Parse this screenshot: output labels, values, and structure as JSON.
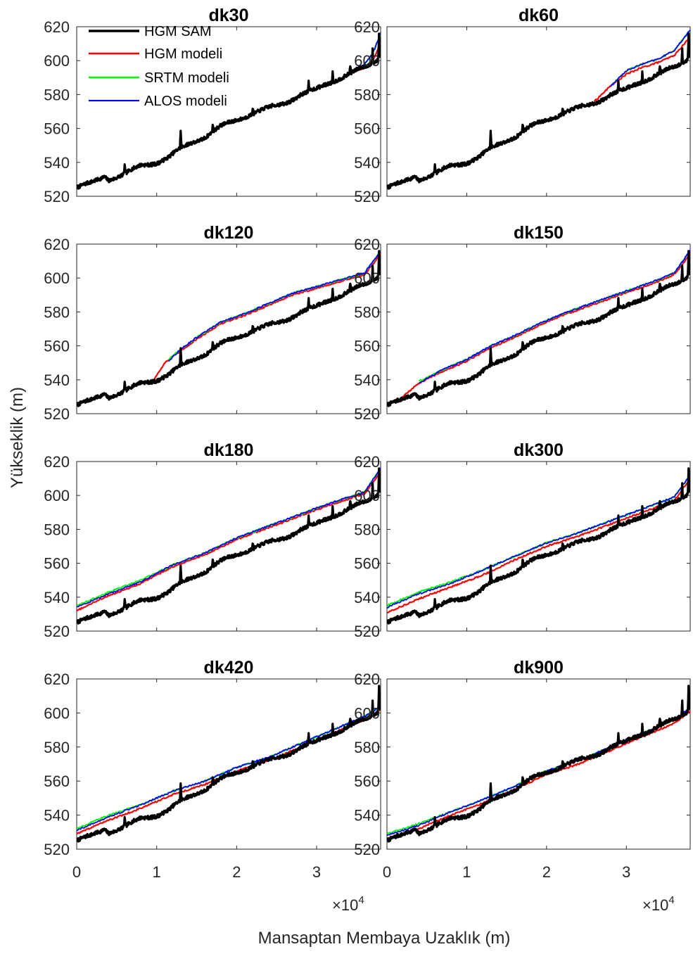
{
  "chart_data": {
    "type": "line",
    "layout": "4x2 grid of subplots",
    "ylabel": "Yükseklik (m)",
    "xlabel": "Mansaptan Membaya Uzaklık (m)",
    "x_exponent": "×10",
    "x_exponent_power": "4",
    "xlim": [
      0,
      38000
    ],
    "ylim": [
      520,
      620
    ],
    "xticks": [
      0,
      10000,
      20000,
      30000
    ],
    "xtick_labels": [
      "0",
      "1",
      "2",
      "3"
    ],
    "yticks": [
      520,
      540,
      560,
      580,
      600,
      620
    ],
    "ytick_labels": [
      "520",
      "540",
      "560",
      "580",
      "600",
      "620"
    ],
    "legend_location": "top-left of first subplot",
    "series_styles": [
      {
        "name": "HGM SAM",
        "color": "#000000",
        "width": 3.2
      },
      {
        "name": "HGM modeli",
        "color": "#ff0000",
        "width": 2.2
      },
      {
        "name": "SRTM modeli",
        "color": "#00ff00",
        "width": 2.0
      },
      {
        "name": "ALOS modeli",
        "color": "#0000ff",
        "width": 1.8
      }
    ],
    "reference_profile": {
      "name": "HGM SAM",
      "x": [
        0,
        2000,
        3500,
        4000,
        6000,
        8000,
        10000,
        11500,
        13000,
        14500,
        16000,
        18000,
        20000,
        22000,
        24000,
        26000,
        28000,
        30000,
        32000,
        34000,
        35500,
        36500,
        37500,
        38000
      ],
      "y": [
        525,
        528,
        532,
        530,
        533,
        538,
        540,
        543,
        548,
        552,
        555,
        561,
        565,
        569,
        572,
        575,
        580,
        583,
        588,
        592,
        595,
        597,
        600,
        605
      ]
    },
    "subplots": [
      {
        "title": "dk30",
        "series": [
          {
            "name": "HGM modeli",
            "x": [
              34000,
              36000,
              37000,
              38000
            ],
            "y": [
              592,
              596,
              600,
              610
            ]
          },
          {
            "name": "SRTM modeli",
            "x": [
              34500,
              36000,
              37000,
              38000
            ],
            "y": [
              594,
              598,
              604,
              616
            ]
          },
          {
            "name": "ALOS modeli",
            "x": [
              34500,
              36000,
              37000,
              38000
            ],
            "y": [
              594,
              598,
              604,
              616
            ]
          }
        ]
      },
      {
        "title": "dk60",
        "series": [
          {
            "name": "HGM modeli",
            "x": [
              26000,
              28000,
              30000,
              32000,
              34000,
              36000,
              38000
            ],
            "y": [
              576,
              585,
              592,
              596,
              599,
              603,
              614
            ]
          },
          {
            "name": "SRTM modeli",
            "x": [
              28000,
              30000,
              32000,
              34000,
              36000,
              38000
            ],
            "y": [
              585,
              594,
              598,
              601,
              606,
              618
            ]
          },
          {
            "name": "ALOS modeli",
            "x": [
              28000,
              30000,
              32000,
              34000,
              36000,
              38000
            ],
            "y": [
              585,
              594,
              598,
              601,
              606,
              618
            ]
          }
        ]
      },
      {
        "title": "dk120",
        "series": [
          {
            "name": "HGM modeli",
            "x": [
              9500,
              11000,
              13000,
              15000,
              18000,
              21000,
              24000,
              27000,
              30000,
              33000,
              36000,
              38000
            ],
            "y": [
              539,
              550,
              557,
              564,
              573,
              578,
              584,
              590,
              594,
              598,
              602,
              614
            ]
          },
          {
            "name": "SRTM modeli",
            "x": [
              11500,
              13000,
              15000,
              18000,
              21000,
              24000,
              27000,
              30000,
              33000,
              36000,
              38000
            ],
            "y": [
              552,
              558,
              565,
              574,
              579,
              585,
              591,
              595,
              599,
              603,
              616
            ]
          },
          {
            "name": "ALOS modeli",
            "x": [
              11500,
              13000,
              15000,
              18000,
              21000,
              24000,
              27000,
              30000,
              33000,
              36000,
              38000
            ],
            "y": [
              551,
              558,
              565,
              574,
              579,
              585,
              591,
              595,
              599,
              603,
              616
            ]
          }
        ]
      },
      {
        "title": "dk150",
        "series": [
          {
            "name": "HGM modeli",
            "x": [
              1500,
              4000,
              7000,
              10000,
              13000,
              16000,
              19000,
              22000,
              25000,
              28000,
              31000,
              34000,
              36000,
              38000
            ],
            "y": [
              528,
              538,
              545,
              551,
              559,
              565,
              572,
              578,
              583,
              588,
              593,
              598,
              602,
              614
            ]
          },
          {
            "name": "SRTM modeli",
            "x": [
              4000,
              7000,
              10000,
              13000,
              16000,
              19000,
              22000,
              25000,
              28000,
              31000,
              34000,
              36000,
              38000
            ],
            "y": [
              539,
              546,
              552,
              560,
              566,
              573,
              579,
              584,
              589,
              594,
              599,
              603,
              616
            ]
          },
          {
            "name": "ALOS modeli",
            "x": [
              4000,
              7000,
              10000,
              13000,
              16000,
              19000,
              22000,
              25000,
              28000,
              31000,
              34000,
              36000,
              38000
            ],
            "y": [
              538,
              546,
              552,
              560,
              566,
              573,
              579,
              584,
              589,
              594,
              599,
              603,
              616
            ]
          }
        ]
      },
      {
        "title": "dk180",
        "series": [
          {
            "name": "HGM modeli",
            "x": [
              0,
              4000,
              8000,
              12000,
              16000,
              20000,
              24000,
              28000,
              32000,
              36000,
              38000
            ],
            "y": [
              532,
              541,
              548,
              558,
              565,
              574,
              581,
              588,
              595,
              601,
              614
            ]
          },
          {
            "name": "SRTM modeli",
            "x": [
              0,
              4000,
              8000,
              12000,
              16000,
              20000,
              24000,
              28000,
              32000,
              36000,
              38000
            ],
            "y": [
              535,
              543,
              550,
              559,
              566,
              575,
              582,
              589,
              596,
              602,
              616
            ]
          },
          {
            "name": "ALOS modeli",
            "x": [
              0,
              4000,
              8000,
              12000,
              16000,
              20000,
              24000,
              28000,
              32000,
              36000,
              38000
            ],
            "y": [
              534,
              542,
              549,
              559,
              566,
              575,
              582,
              589,
              596,
              602,
              616
            ]
          }
        ]
      },
      {
        "title": "dk300",
        "series": [
          {
            "name": "HGM modeli",
            "x": [
              0,
              4000,
              8000,
              12000,
              16000,
              20000,
              24000,
              28000,
              32000,
              36000,
              38000
            ],
            "y": [
              531,
              539,
              546,
              553,
              562,
              570,
              576,
              583,
              590,
              597,
              610
            ]
          },
          {
            "name": "SRTM modeli",
            "x": [
              0,
              4000,
              8000,
              12000,
              16000,
              20000,
              24000,
              28000,
              32000,
              36000,
              38000
            ],
            "y": [
              535,
              543,
              549,
              556,
              564,
              572,
              578,
              585,
              592,
              599,
              612
            ]
          },
          {
            "name": "ALOS modeli",
            "x": [
              0,
              4000,
              8000,
              12000,
              16000,
              20000,
              24000,
              28000,
              32000,
              36000,
              38000
            ],
            "y": [
              534,
              542,
              548,
              556,
              564,
              572,
              578,
              585,
              592,
              599,
              612
            ]
          }
        ]
      },
      {
        "title": "dk420",
        "series": [
          {
            "name": "HGM modeli",
            "x": [
              0,
              4000,
              8000,
              12000,
              16000,
              20000,
              24000,
              28000,
              32000,
              36000,
              38000
            ],
            "y": [
              529,
              537,
              544,
              552,
              558,
              566,
              572,
              580,
              588,
              596,
              602
            ]
          },
          {
            "name": "SRTM modeli",
            "x": [
              0,
              4000,
              8000,
              12000,
              16000,
              20000,
              24000,
              28000,
              32000,
              36000,
              38000
            ],
            "y": [
              532,
              540,
              546,
              554,
              560,
              568,
              574,
              582,
              590,
              598,
              604
            ]
          },
          {
            "name": "ALOS modeli",
            "x": [
              0,
              4000,
              8000,
              12000,
              16000,
              20000,
              24000,
              28000,
              32000,
              36000,
              38000
            ],
            "y": [
              531,
              539,
              546,
              554,
              560,
              568,
              574,
              582,
              590,
              598,
              604
            ]
          }
        ]
      },
      {
        "title": "dk900",
        "series": [
          {
            "name": "HGM modeli",
            "x": [
              0,
              4000,
              8000,
              12000,
              16000,
              20000,
              24000,
              28000,
              32000,
              36000,
              38000
            ],
            "y": [
              526,
              532,
              540,
              547,
              555,
              564,
              570,
              578,
              586,
              594,
              601
            ]
          },
          {
            "name": "SRTM modeli",
            "x": [
              0,
              4000,
              8000,
              12000,
              16000,
              20000,
              24000,
              28000,
              32000,
              36000,
              38000
            ],
            "y": [
              529,
              535,
              542,
              549,
              557,
              566,
              572,
              580,
              588,
              596,
              603
            ]
          },
          {
            "name": "ALOS modeli",
            "x": [
              0,
              4000,
              8000,
              12000,
              16000,
              20000,
              24000,
              28000,
              32000,
              36000,
              38000
            ],
            "y": [
              528,
              534,
              542,
              549,
              557,
              566,
              572,
              580,
              588,
              596,
              603
            ]
          }
        ]
      }
    ]
  }
}
